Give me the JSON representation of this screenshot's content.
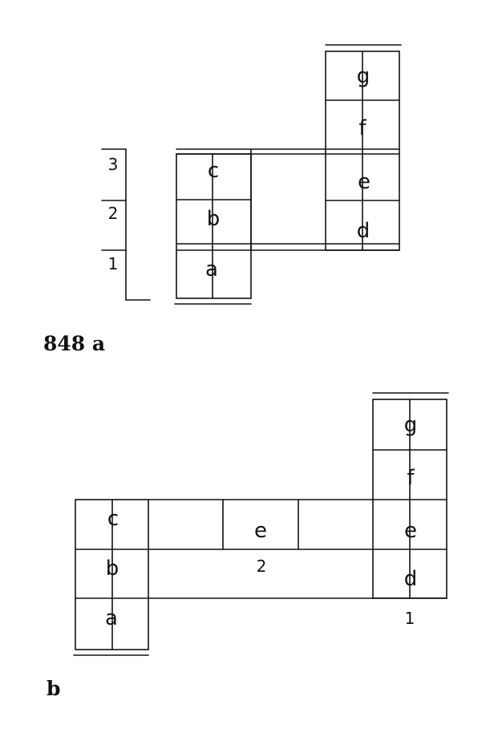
{
  "figure_a": {
    "caption": "848 a",
    "level_numbers": [
      "3",
      "2",
      "1"
    ],
    "cells": {
      "a": "a",
      "b": "b",
      "c": "c",
      "d": "d",
      "e": "e",
      "f": "f",
      "g": "g"
    }
  },
  "figure_b": {
    "caption": "b",
    "cells": {
      "a": "a",
      "b": "b",
      "c": "c",
      "e_mid": "e",
      "e_right": "e",
      "d": "d",
      "f": "f",
      "g": "g"
    },
    "labels": {
      "two": "2",
      "one": "1"
    }
  },
  "colors": {
    "ink": "#111111",
    "paper": "#ffffff"
  }
}
